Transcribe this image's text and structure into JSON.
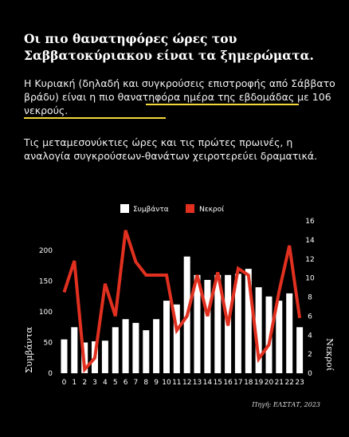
{
  "title": "Οι πιο θανατηφόρες ώρες του Σαββατοκύριακου είναι τα ξημερώματα.",
  "paragraph1": {
    "before": "Η Κυριακή (δηλαδή και συγκρούσεις επιστροφής από Σάββατο βράδυ) είναι ",
    "highlight": "η πιο θανατηφόρα ημέρα της εβδομάδας με 106 νεκρούς."
  },
  "paragraph2": "Τις μεταμεσονύκτιες ώρες και τις πρώτες πρωινές, η αναλογία συγκρούσεων-θανάτων χειροτερεύει δραματικά.",
  "source": "Πηγή: ΕΛΣΤΑΤ, 2023",
  "colors": {
    "background": "#000000",
    "bars": "#ffffff",
    "line": "#e1301f",
    "highlight_underline": "#f1d83b"
  },
  "chart_data": {
    "type": "bar+line",
    "categories": [
      "0",
      "1",
      "2",
      "3",
      "4",
      "5",
      "6",
      "7",
      "8",
      "9",
      "10",
      "11",
      "12",
      "13",
      "14",
      "15",
      "16",
      "17",
      "18",
      "19",
      "20",
      "21",
      "22",
      "23"
    ],
    "series": [
      {
        "name": "Συμβάντα",
        "type": "bar",
        "axis": "left",
        "values": [
          55,
          75,
          50,
          52,
          53,
          75,
          88,
          82,
          70,
          88,
          118,
          112,
          190,
          160,
          152,
          160,
          160,
          162,
          170,
          140,
          125,
          118,
          130,
          75
        ]
      },
      {
        "name": "Νεκροί",
        "type": "line",
        "axis": "right",
        "values": [
          8.5,
          11.8,
          0.4,
          1.6,
          9.4,
          6,
          15,
          11.7,
          10.3,
          10.3,
          10.3,
          4.5,
          6,
          10.3,
          6,
          10.6,
          5,
          11,
          10.3,
          1.5,
          3,
          8.6,
          13.4,
          5.8
        ]
      }
    ],
    "y_left": {
      "label": "Συμβάντα",
      "ticks": [
        0,
        50,
        100,
        150,
        200
      ],
      "range": [
        0,
        205
      ]
    },
    "y_right": {
      "label": "Νεκροί",
      "ticks": [
        0,
        2,
        4,
        6,
        8,
        10,
        12,
        14,
        16
      ],
      "range": [
        0,
        16
      ]
    },
    "legend_position": "top-center",
    "grid": false
  }
}
